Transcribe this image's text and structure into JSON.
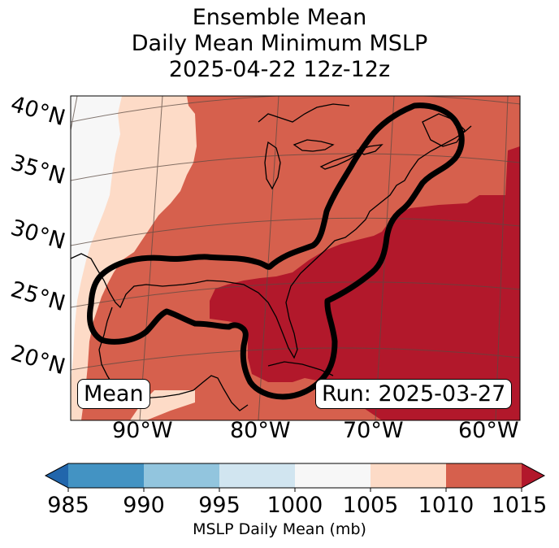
{
  "title": {
    "line1": "Ensemble Mean",
    "line2": "Daily Mean Minimum MSLP",
    "line3": "2025-04-22 12z-12z"
  },
  "map": {
    "lat_labels": [
      "40°N",
      "35°N",
      "30°N",
      "25°N",
      "20°N"
    ],
    "lon_labels": [
      "90°W",
      "80°W",
      "70°W",
      "60°W"
    ],
    "mean_label": "Mean",
    "run_label": "Run: 2025-03-27"
  },
  "colorbar": {
    "ticks": [
      "985",
      "990",
      "995",
      "1000",
      "1005",
      "1010",
      "1015"
    ],
    "label": "MSLP Daily Mean (mb)",
    "colors": [
      "#2166ac",
      "#4393c3",
      "#92c5de",
      "#d1e5f0",
      "#f7f7f7",
      "#fddbc7",
      "#d6604d",
      "#b2182b"
    ]
  }
}
